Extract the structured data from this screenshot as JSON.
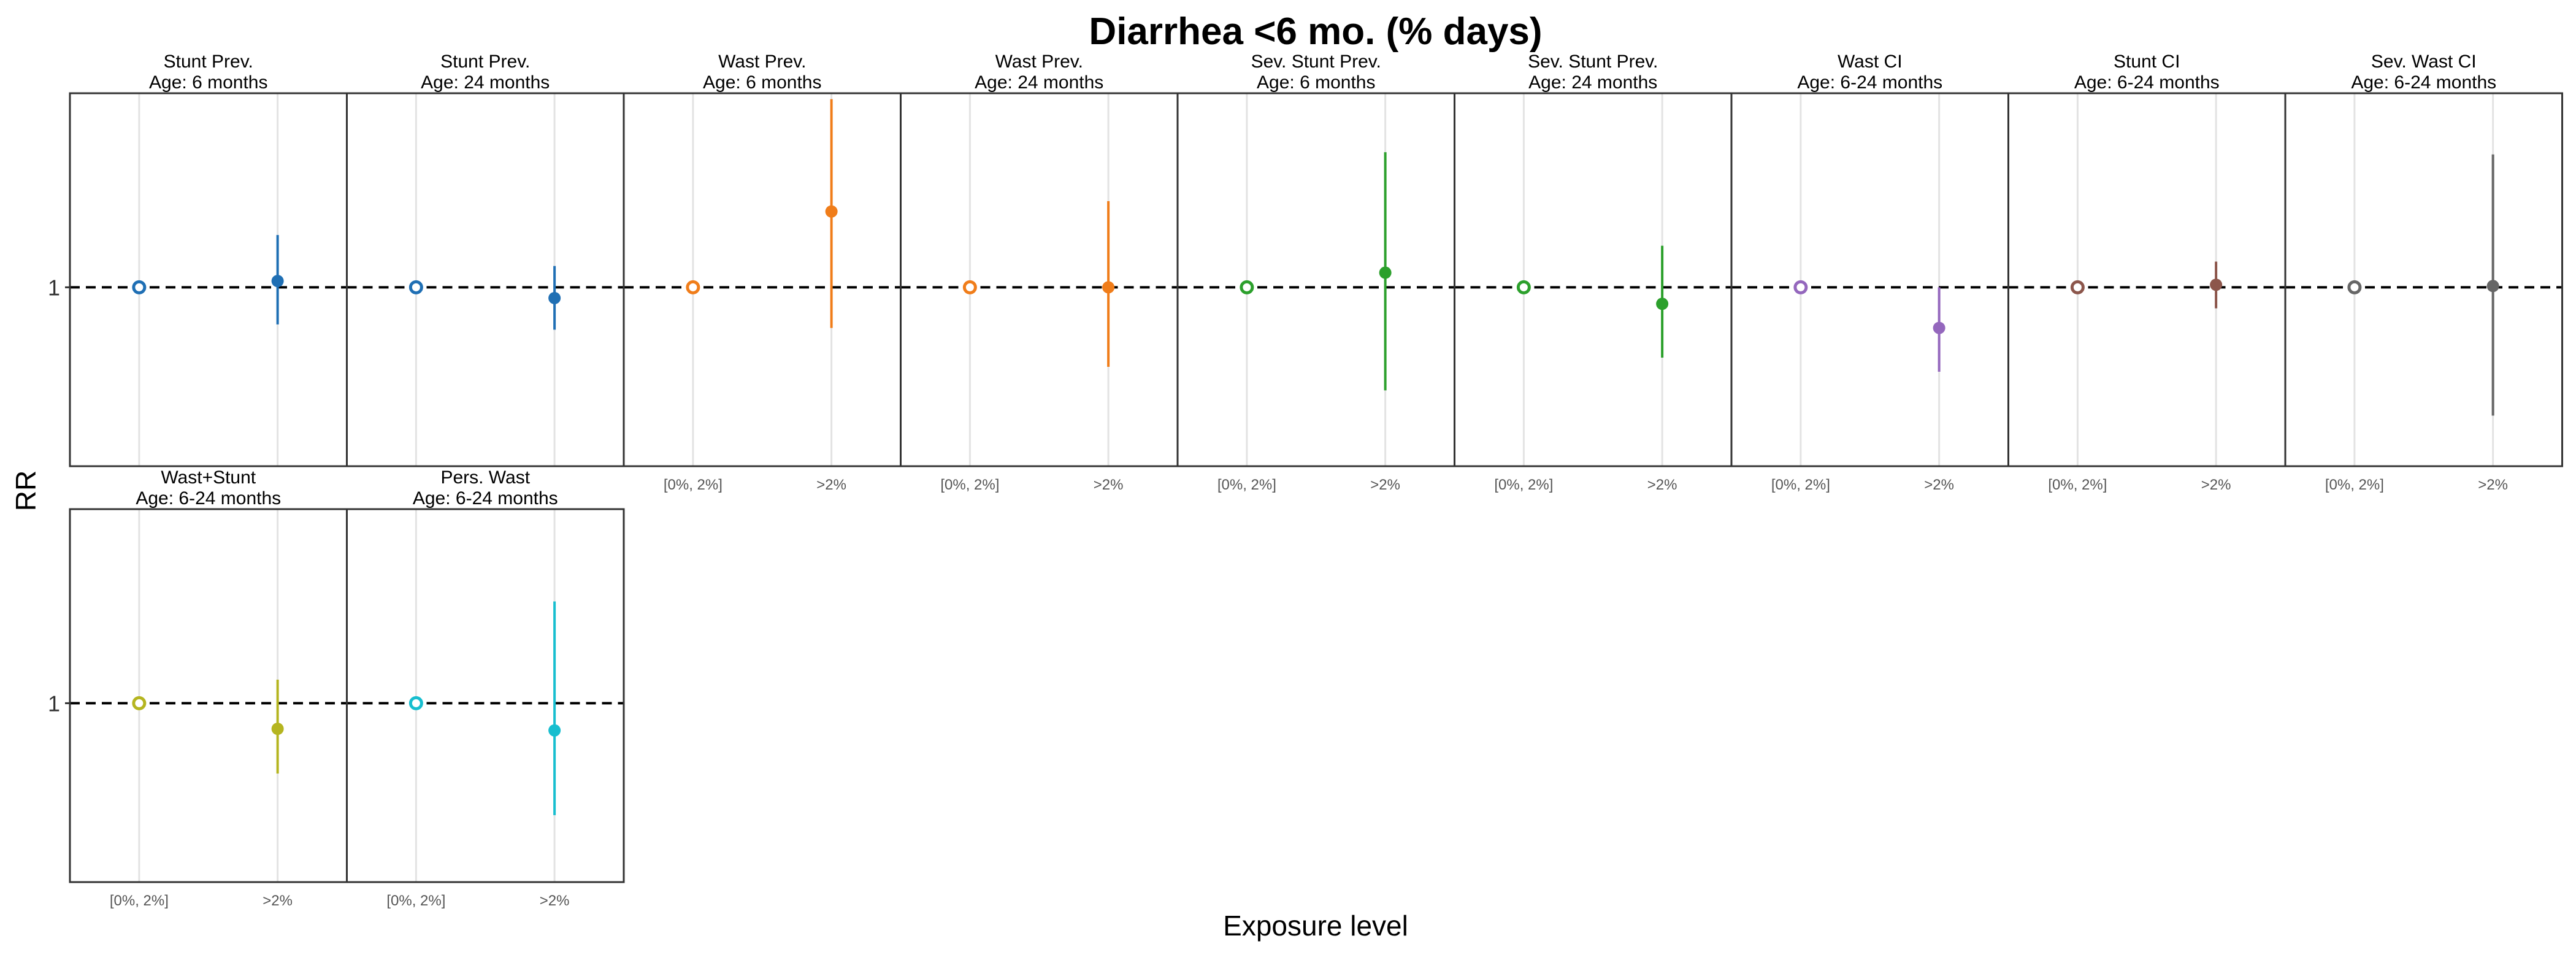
{
  "figure": {
    "title": "Diarrhea <6 mo. (% days)",
    "y_axis_title": "RR",
    "x_axis_title": "Exposure level"
  },
  "chart_data": {
    "type": "scatter",
    "subtype": "point-range (relative risk with 95% CI), faceted",
    "y_scale": "log",
    "ylim": [
      0.25,
      4.5
    ],
    "y_ticks": [
      1
    ],
    "y_tick_labels": [
      "1"
    ],
    "reference_line": {
      "y": 1,
      "style": "dashed",
      "color": "#000000"
    },
    "categories": [
      "[0%, 2%]",
      ">2%"
    ],
    "grid": "vertical only",
    "facets": [
      {
        "title": "Stunt Prev.",
        "subtitle": "Age: 6 months",
        "color": "#1f6fb4",
        "points": [
          {
            "x": "[0%, 2%]",
            "rr": 1,
            "ref": true
          },
          {
            "x": ">2%",
            "rr": 1.05,
            "lo": 0.75,
            "hi": 1.5
          }
        ]
      },
      {
        "title": "Stunt Prev.",
        "subtitle": "Age: 24 months",
        "color": "#1f6fb4",
        "points": [
          {
            "x": "[0%, 2%]",
            "rr": 1,
            "ref": true
          },
          {
            "x": ">2%",
            "rr": 0.92,
            "lo": 0.72,
            "hi": 1.18
          }
        ]
      },
      {
        "title": "Wast Prev.",
        "subtitle": "Age: 6 months",
        "color": "#f07d1a",
        "points": [
          {
            "x": "[0%, 2%]",
            "rr": 1,
            "ref": true
          },
          {
            "x": ">2%",
            "rr": 1.8,
            "lo": 0.73,
            "hi": 4.3
          }
        ]
      },
      {
        "title": "Wast Prev.",
        "subtitle": "Age: 24 months",
        "color": "#f07d1a",
        "points": [
          {
            "x": "[0%, 2%]",
            "rr": 1,
            "ref": true
          },
          {
            "x": ">2%",
            "rr": 1.0,
            "lo": 0.54,
            "hi": 1.95
          }
        ]
      },
      {
        "title": "Sev. Stunt Prev.",
        "subtitle": "Age: 6 months",
        "color": "#2ca02c",
        "points": [
          {
            "x": "[0%, 2%]",
            "rr": 1,
            "ref": true
          },
          {
            "x": ">2%",
            "rr": 1.12,
            "lo": 0.45,
            "hi": 2.85
          }
        ]
      },
      {
        "title": "Sev. Stunt Prev.",
        "subtitle": "Age: 24 months",
        "color": "#2ca02c",
        "points": [
          {
            "x": "[0%, 2%]",
            "rr": 1,
            "ref": true
          },
          {
            "x": ">2%",
            "rr": 0.88,
            "lo": 0.58,
            "hi": 1.38
          }
        ]
      },
      {
        "title": "Wast CI",
        "subtitle": "Age: 6-24 months",
        "color": "#9467bd",
        "points": [
          {
            "x": "[0%, 2%]",
            "rr": 1,
            "ref": true
          },
          {
            "x": ">2%",
            "rr": 0.73,
            "lo": 0.52,
            "hi": 1.0
          }
        ]
      },
      {
        "title": "Stunt CI",
        "subtitle": "Age: 6-24 months",
        "color": "#8c564b",
        "points": [
          {
            "x": "[0%, 2%]",
            "rr": 1,
            "ref": true
          },
          {
            "x": ">2%",
            "rr": 1.02,
            "lo": 0.85,
            "hi": 1.22
          }
        ]
      },
      {
        "title": "Sev. Wast CI",
        "subtitle": "Age: 6-24 months",
        "color": "#666666",
        "points": [
          {
            "x": "[0%, 2%]",
            "rr": 1,
            "ref": true
          },
          {
            "x": ">2%",
            "rr": 1.01,
            "lo": 0.37,
            "hi": 2.8
          }
        ]
      },
      {
        "title": "Wast+Stunt",
        "subtitle": "Age: 6-24 months",
        "color": "#b5b520",
        "points": [
          {
            "x": "[0%, 2%]",
            "rr": 1,
            "ref": true
          },
          {
            "x": ">2%",
            "rr": 0.82,
            "lo": 0.58,
            "hi": 1.2
          }
        ]
      },
      {
        "title": "Pers. Wast",
        "subtitle": "Age: 6-24 months",
        "color": "#17becf",
        "points": [
          {
            "x": "[0%, 2%]",
            "rr": 1,
            "ref": true
          },
          {
            "x": ">2%",
            "rr": 0.81,
            "lo": 0.42,
            "hi": 2.2
          }
        ]
      }
    ]
  }
}
